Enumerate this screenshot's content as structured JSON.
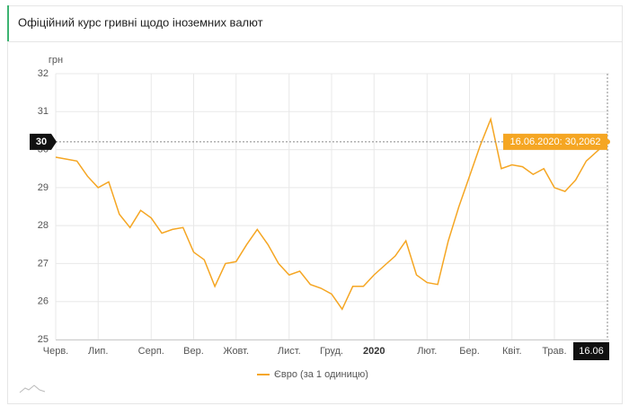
{
  "header": {
    "title": "Офіційний курс гривні щодо іноземних валют"
  },
  "chart_data": {
    "type": "line",
    "y_label": "грн",
    "categories": [
      "Черв.",
      null,
      null,
      null,
      "Лип.",
      null,
      null,
      null,
      null,
      "Серп.",
      null,
      null,
      null,
      "Вер.",
      null,
      null,
      null,
      "Жовт.",
      null,
      null,
      null,
      null,
      "Лист.",
      null,
      null,
      null,
      "Груд.",
      null,
      null,
      null,
      "2020",
      null,
      null,
      null,
      null,
      "Лют.",
      null,
      null,
      null,
      "Бер.",
      null,
      null,
      null,
      "Квіт.",
      null,
      null,
      null,
      "Трав.",
      null,
      null,
      null,
      null,
      null
    ],
    "series": [
      {
        "name": "Євро (за 1 одиницю)",
        "color": "#f5a623",
        "values": [
          29.8,
          29.75,
          29.7,
          29.3,
          29.0,
          29.15,
          28.3,
          27.95,
          28.4,
          28.2,
          27.8,
          27.9,
          27.95,
          27.3,
          27.1,
          26.4,
          27.0,
          27.05,
          27.5,
          27.9,
          27.5,
          27.0,
          26.7,
          26.8,
          26.45,
          26.35,
          26.2,
          25.8,
          26.4,
          26.4,
          26.7,
          26.95,
          27.2,
          27.6,
          26.7,
          26.5,
          26.45,
          27.6,
          28.5,
          29.3,
          30.1,
          30.8,
          29.5,
          29.6,
          29.55,
          29.35,
          29.5,
          29.0,
          28.9,
          29.2,
          29.7,
          29.95,
          30.2062
        ]
      }
    ],
    "ylim": [
      25,
      32
    ],
    "yticks": [
      25,
      26,
      27,
      28,
      29,
      30,
      31,
      32
    ],
    "grid": true,
    "crosshair": {
      "y_label": "30",
      "x_label": "16.06",
      "tooltip": "16.06.2020: 30,2062"
    }
  }
}
